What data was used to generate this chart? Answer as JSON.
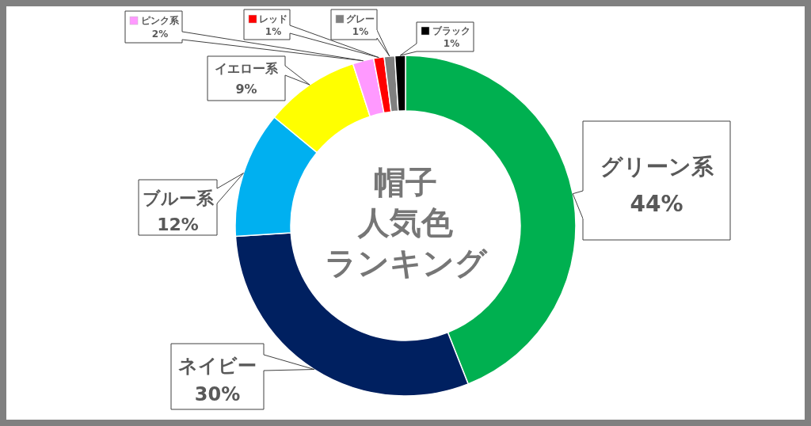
{
  "chart_data": {
    "type": "donut",
    "title": "帽子人気色ランキング",
    "categories": [
      "グリーン系",
      "ネイビー",
      "ブルー系",
      "イエロー系",
      "ピンク系",
      "レッド",
      "グレー",
      "ブラック"
    ],
    "values": [
      44,
      30,
      12,
      9,
      2,
      1,
      1,
      1
    ],
    "colors": [
      "#00b050",
      "#002060",
      "#00b0f0",
      "#ffff00",
      "#ff99ff",
      "#ff0000",
      "#808080",
      "#000000"
    ],
    "value_labels": [
      "44%",
      "30%",
      "12%",
      "9%",
      "2%",
      "1%",
      "1%",
      "1%"
    ],
    "legend": "top"
  }
}
